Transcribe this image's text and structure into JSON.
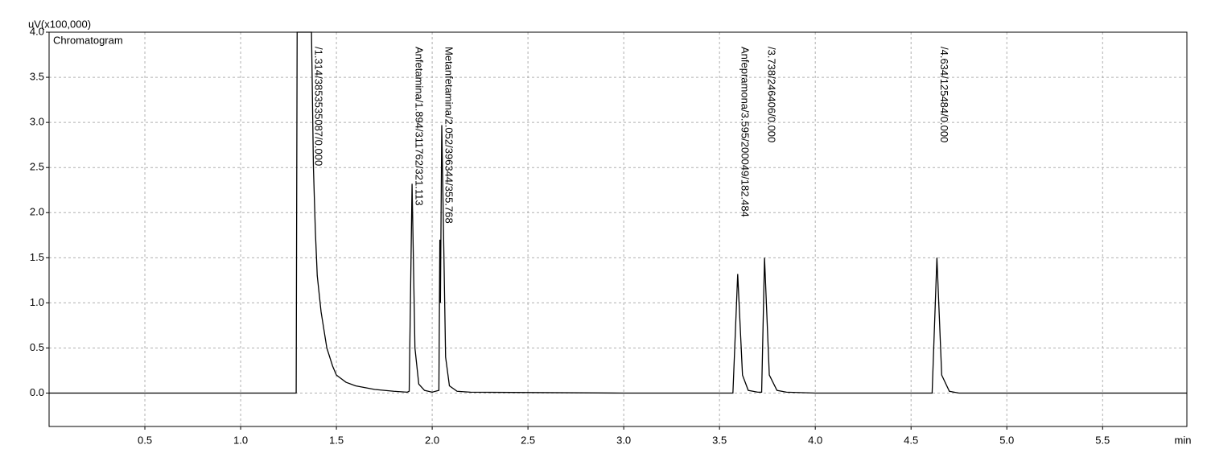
{
  "chart_data": {
    "type": "line",
    "title": "Chromatogram",
    "ylabel": "uV(x100,000)",
    "xlabel": "min",
    "xlim": [
      0,
      5.94
    ],
    "ylim": [
      -0.37,
      4.0
    ],
    "xticks": [
      0.5,
      {
        "value": 1,
        "label": "1.0"
      },
      1.5,
      {
        "value": 2,
        "label": "2.0"
      },
      2.5,
      {
        "value": 3,
        "label": "3.0"
      },
      3.5,
      {
        "value": 4,
        "label": "4.0"
      },
      4.5,
      {
        "value": 5,
        "label": "5.0"
      },
      5.5
    ],
    "yticks": [
      {
        "value": 0,
        "label": "0.0"
      },
      0.5,
      {
        "value": 1,
        "label": "1.0"
      },
      1.5,
      {
        "value": 2,
        "label": "2.0"
      },
      2.5,
      {
        "value": 3,
        "label": "3.0"
      },
      3.5,
      {
        "value": 4,
        "label": "4.0"
      }
    ],
    "grid": true,
    "series": [
      {
        "name": "Chromatogram",
        "color": "#000000",
        "x": [
          0,
          1.29,
          1.295,
          1.37,
          1.38,
          1.39,
          1.4,
          1.42,
          1.45,
          1.48,
          1.5,
          1.55,
          1.6,
          1.7,
          1.8,
          1.87,
          1.88,
          1.895,
          1.91,
          1.93,
          1.96,
          2.0,
          2.035,
          2.04,
          2.043,
          2.05,
          2.07,
          2.09,
          2.13,
          2.2,
          3.0,
          3.57,
          3.595,
          3.62,
          3.65,
          3.7,
          3.72,
          3.735,
          3.76,
          3.8,
          3.85,
          4.0,
          4.61,
          4.635,
          4.66,
          4.7,
          4.75,
          5.94
        ],
        "values": [
          0,
          0,
          4.0,
          4.0,
          2.5,
          1.8,
          1.3,
          0.9,
          0.5,
          0.3,
          0.2,
          0.12,
          0.08,
          0.04,
          0.02,
          0.01,
          0.02,
          2.32,
          0.5,
          0.1,
          0.03,
          0.01,
          0.03,
          1.7,
          1.0,
          2.97,
          0.4,
          0.08,
          0.02,
          0.01,
          0,
          0,
          1.32,
          0.2,
          0.03,
          0.01,
          0.01,
          1.5,
          0.2,
          0.03,
          0.01,
          0,
          0,
          1.5,
          0.2,
          0.02,
          0,
          0
        ]
      }
    ],
    "annotations": [
      {
        "text": "/1.314/3853535087/0.000",
        "x": 1.37
      },
      {
        "text": "Anfetamina/1.894/311762/321.113",
        "x": 1.895
      },
      {
        "text": "Metanfetamina/2.052/396344/355.768",
        "x": 2.05
      },
      {
        "text": "Anfepramona/3.595/200049/182.484",
        "x": 3.595
      },
      {
        "text": "/3.738/246406/0.000",
        "x": 3.735
      },
      {
        "text": "/4.634/125484/0.000",
        "x": 4.635
      }
    ]
  }
}
